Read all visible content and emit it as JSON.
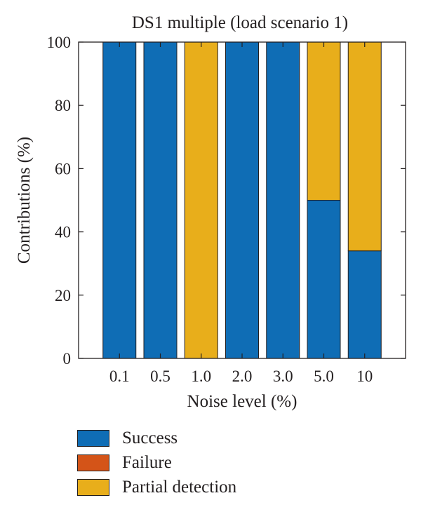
{
  "chart_data": {
    "type": "bar",
    "stacked": true,
    "title": "DS1 multiple (load scenario 1)",
    "xlabel": "Noise level (%)",
    "ylabel": "Contributions (%)",
    "ylim": [
      0,
      100
    ],
    "yticks": [
      0,
      20,
      40,
      60,
      80,
      100
    ],
    "categories": [
      "0.1",
      "0.5",
      "1.0",
      "2.0",
      "3.0",
      "5.0",
      "10"
    ],
    "series": [
      {
        "name": "Success",
        "color": "#0f6db5",
        "values": [
          100,
          100,
          0,
          100,
          100,
          50,
          34
        ]
      },
      {
        "name": "Failure",
        "color": "#d45418",
        "values": [
          0,
          0,
          0,
          0,
          0,
          0,
          0
        ]
      },
      {
        "name": "Partial detection",
        "color": "#e8ae1b",
        "values": [
          0,
          0,
          100,
          0,
          0,
          50,
          66
        ]
      }
    ],
    "legend_position": "bottom-left",
    "grid": false
  }
}
